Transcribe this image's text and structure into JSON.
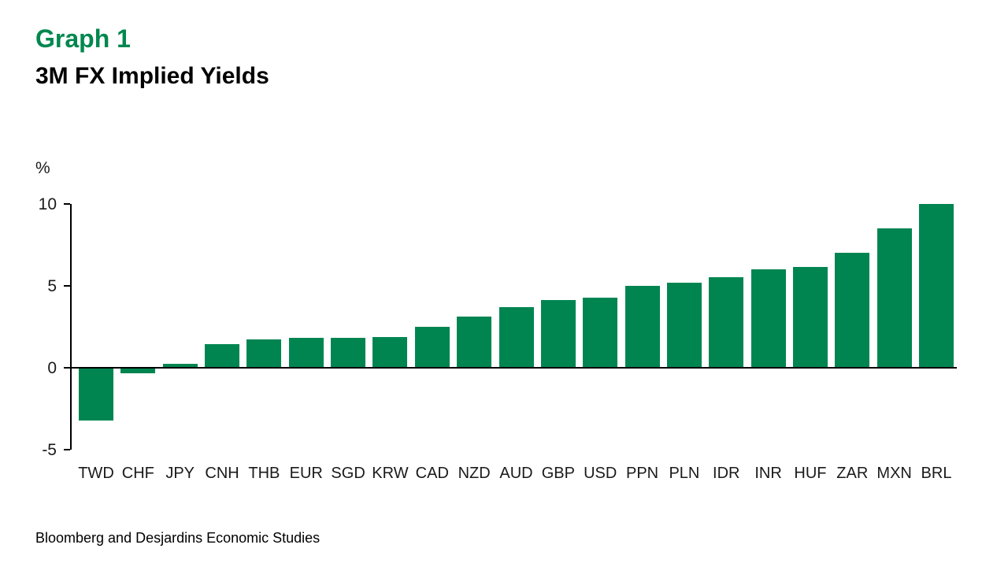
{
  "page": {
    "background": "#ffffff"
  },
  "header": {
    "graph_label": "Graph 1",
    "title": "3M FX Implied Yields"
  },
  "footer": {
    "source": "Bloomberg and Desjardins Economic Studies"
  },
  "chart_data": {
    "type": "bar",
    "title": "3M FX Implied Yields",
    "unit_label": "%",
    "categories": [
      "TWD",
      "CHF",
      "JPY",
      "CNH",
      "THB",
      "EUR",
      "SGD",
      "KRW",
      "CAD",
      "NZD",
      "AUD",
      "GBP",
      "USD",
      "PPN",
      "PLN",
      "IDR",
      "INR",
      "HUF",
      "ZAR",
      "MXN",
      "BRL"
    ],
    "values": [
      -3.2,
      -0.3,
      0.25,
      1.45,
      1.75,
      1.85,
      1.85,
      1.9,
      2.5,
      3.15,
      3.7,
      4.15,
      4.3,
      5.0,
      5.2,
      5.55,
      6.0,
      6.15,
      7.05,
      8.5,
      10.0
    ],
    "y_ticks": [
      10,
      5,
      0,
      -5
    ],
    "ylim": [
      -5,
      10
    ],
    "bar_color": "#008551",
    "accent_color": "#00874E",
    "grid": "none",
    "legend": "none"
  }
}
